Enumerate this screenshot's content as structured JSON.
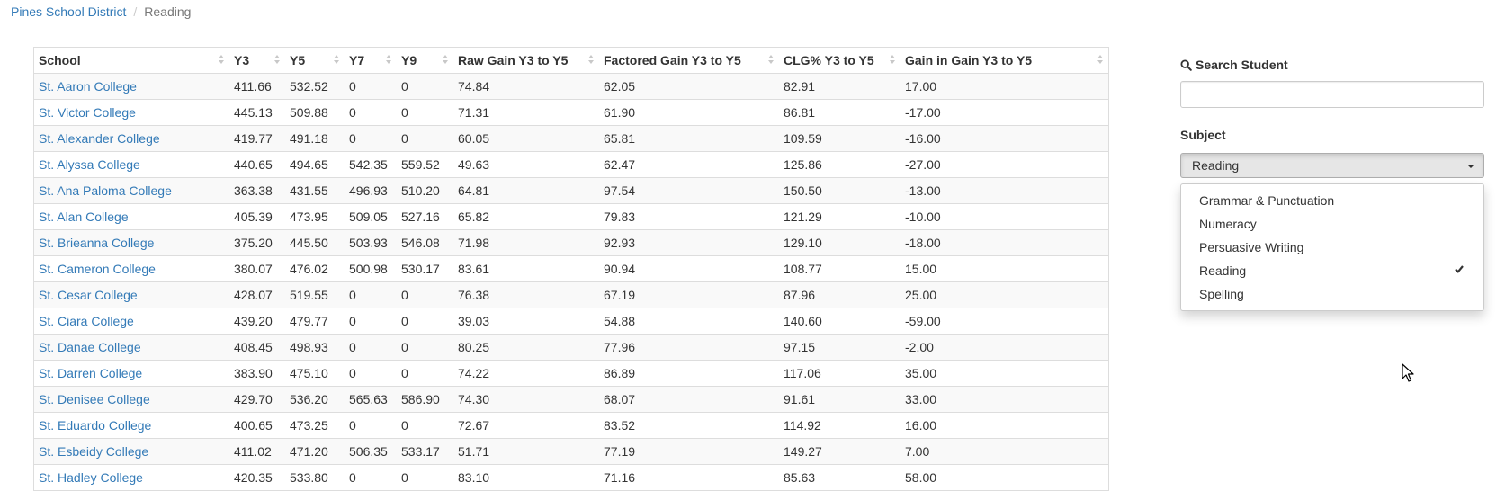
{
  "breadcrumb": {
    "home": "Pines School District",
    "separator": "/",
    "current": "Reading"
  },
  "table": {
    "headers": [
      "School",
      "Y3",
      "Y5",
      "Y7",
      "Y9",
      "Raw Gain Y3 to Y5",
      "Factored Gain Y3 to Y5",
      "CLG% Y3 to Y5",
      "Gain in Gain Y3 to Y5"
    ],
    "rows": [
      [
        "St. Aaron College",
        "411.66",
        "532.52",
        "0",
        "0",
        "74.84",
        "62.05",
        "82.91",
        "17.00"
      ],
      [
        "St. Victor College",
        "445.13",
        "509.88",
        "0",
        "0",
        "71.31",
        "61.90",
        "86.81",
        "-17.00"
      ],
      [
        "St. Alexander College",
        "419.77",
        "491.18",
        "0",
        "0",
        "60.05",
        "65.81",
        "109.59",
        "-16.00"
      ],
      [
        "St. Alyssa College",
        "440.65",
        "494.65",
        "542.35",
        "559.52",
        "49.63",
        "62.47",
        "125.86",
        "-27.00"
      ],
      [
        "St. Ana Paloma College",
        "363.38",
        "431.55",
        "496.93",
        "510.20",
        "64.81",
        "97.54",
        "150.50",
        "-13.00"
      ],
      [
        "St. Alan College",
        "405.39",
        "473.95",
        "509.05",
        "527.16",
        "65.82",
        "79.83",
        "121.29",
        "-10.00"
      ],
      [
        "St. Brieanna College",
        "375.20",
        "445.50",
        "503.93",
        "546.08",
        "71.98",
        "92.93",
        "129.10",
        "-18.00"
      ],
      [
        "St. Cameron College",
        "380.07",
        "476.02",
        "500.98",
        "530.17",
        "83.61",
        "90.94",
        "108.77",
        "15.00"
      ],
      [
        "St. Cesar College",
        "428.07",
        "519.55",
        "0",
        "0",
        "76.38",
        "67.19",
        "87.96",
        "25.00"
      ],
      [
        "St. Ciara College",
        "439.20",
        "479.77",
        "0",
        "0",
        "39.03",
        "54.88",
        "140.60",
        "-59.00"
      ],
      [
        "St. Danae College",
        "408.45",
        "498.93",
        "0",
        "0",
        "80.25",
        "77.96",
        "97.15",
        "-2.00"
      ],
      [
        "St. Darren College",
        "383.90",
        "475.10",
        "0",
        "0",
        "74.22",
        "86.89",
        "117.06",
        "35.00"
      ],
      [
        "St. Denisee College",
        "429.70",
        "536.20",
        "565.63",
        "586.90",
        "74.30",
        "68.07",
        "91.61",
        "33.00"
      ],
      [
        "St. Eduardo College",
        "400.65",
        "473.25",
        "0",
        "0",
        "72.67",
        "83.52",
        "114.92",
        "16.00"
      ],
      [
        "St. Esbeidy College",
        "411.02",
        "471.20",
        "506.35",
        "533.17",
        "51.71",
        "77.19",
        "149.27",
        "7.00"
      ],
      [
        "St. Hadley College",
        "420.35",
        "533.80",
        "0",
        "0",
        "83.10",
        "71.16",
        "85.63",
        "58.00"
      ]
    ]
  },
  "sidebar": {
    "search_label": "Search Student",
    "search_value": "",
    "subject_label": "Subject",
    "subject_selected": "Reading",
    "subject_options": [
      "Grammar & Punctuation",
      "Numeracy",
      "Persuasive Writing",
      "Reading",
      "Spelling"
    ]
  },
  "icons": {
    "search": "search-icon",
    "caret": "caret-down-icon",
    "check": "check-icon",
    "sort": "sort-icon",
    "cursor": "mouse-pointer-icon"
  },
  "colors": {
    "link": "#337ab7",
    "muted": "#777777",
    "border": "#dddddd",
    "stripe": "#f9f9f9"
  }
}
